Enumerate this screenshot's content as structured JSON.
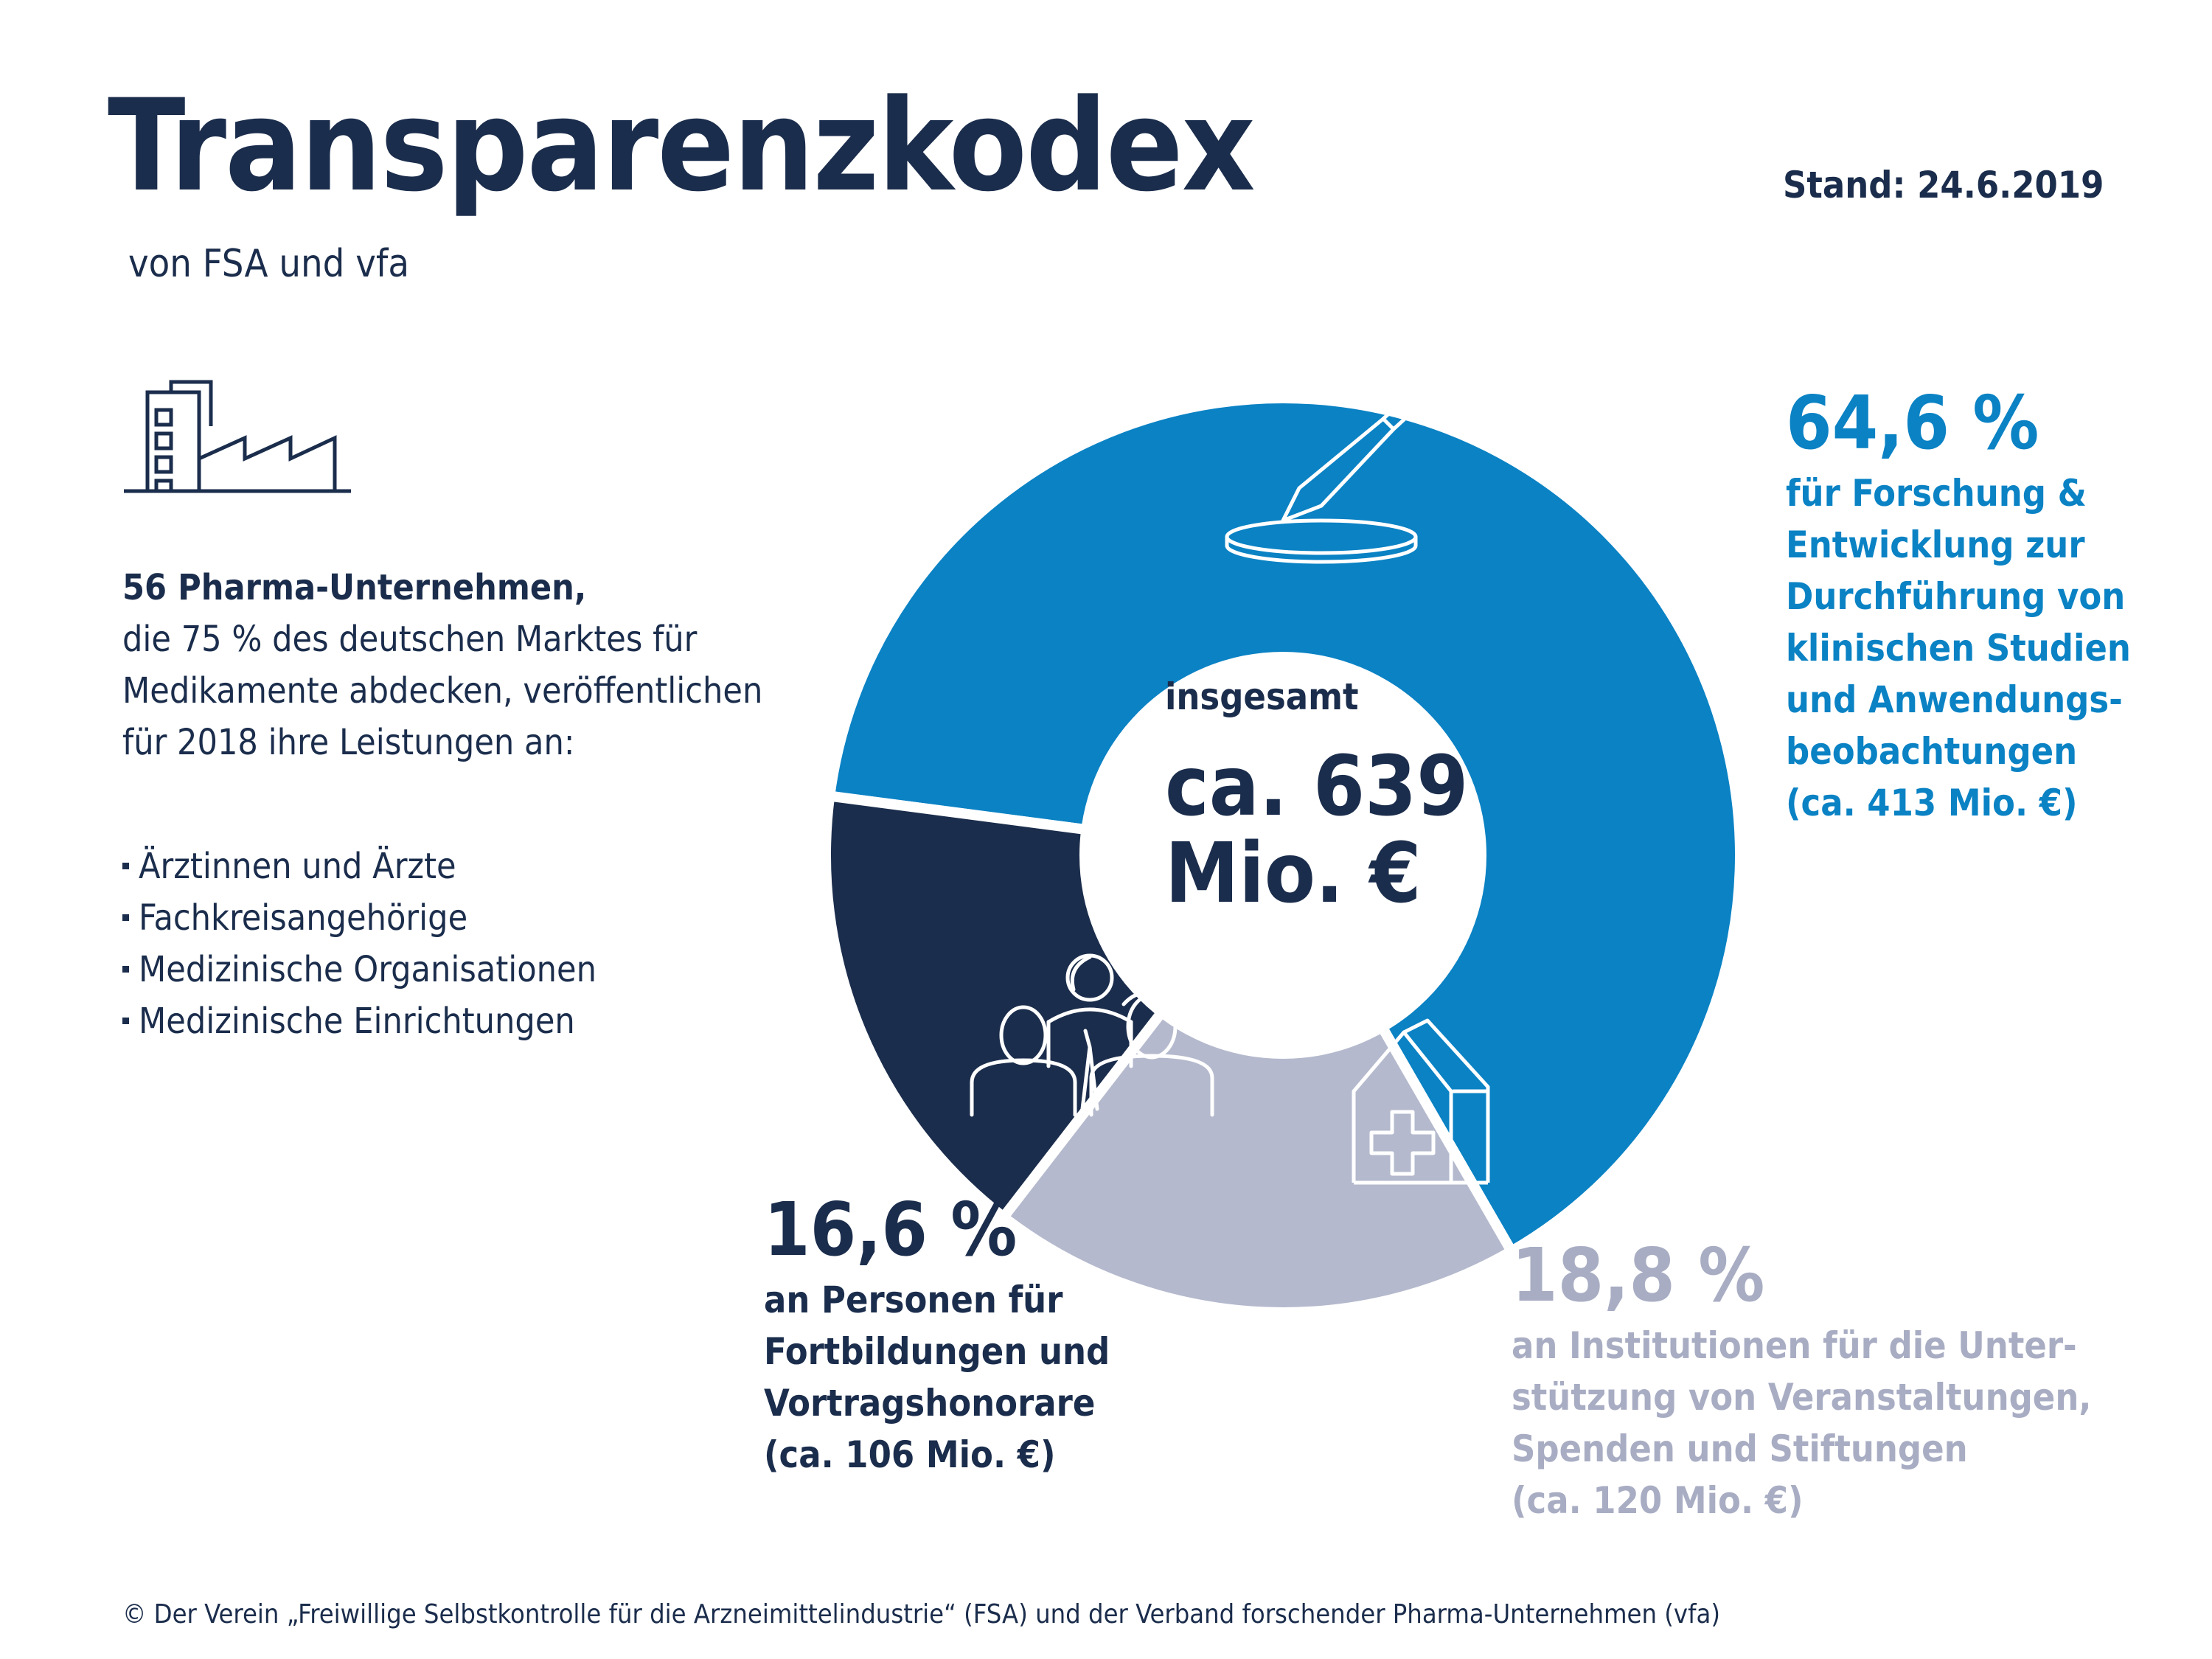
{
  "header": {
    "title": "Transparenzkodex",
    "subtitle": "von FSA und vfa",
    "date": "Stand: 24.6.2019"
  },
  "intro": {
    "lead": "56 Pharma-Unternehmen,",
    "text": "die 75 % des deutschen Marktes für Medikamente abdecken, veröffentlichen für 2018 ihre Leistungen an:",
    "bullets": [
      "Ärztinnen und Ärzte",
      "Fachkreisangehörige",
      "Medizinische Organisationen",
      "Medizinische Einrichtungen"
    ]
  },
  "center": {
    "label": "insgesamt",
    "value": "ca. 639 Mio. €"
  },
  "labels": {
    "blue": {
      "pct": "64,6 %",
      "desc": "für Forschung & Entwicklung zur Durchführung von klinischen Studien und Anwendungs-beobachtungen",
      "amount": "(ca. 413 Mio. €)"
    },
    "grey": {
      "pct": "18,8 %",
      "desc": "an Institutionen für die Unter-stützung von Veranstaltungen, Spenden und Stiftungen",
      "amount": "(ca. 120 Mio. €)"
    },
    "navy": {
      "pct": "16,6 %",
      "desc": "an Personen für Fortbildungen und Vortragshonorare",
      "amount": "(ca. 106 Mio. €)"
    }
  },
  "footer": "© Der Verein „Freiwillige Selbstkontrolle für die Arzneimittelindustrie“ (FSA) und der Verband forschender Pharma-Unternehmen (vfa)",
  "icons": {
    "header": "factory-icon",
    "research": "pipette-petri-dish-icon",
    "institutions": "hospital-building-icon",
    "persons": "people-group-icon"
  },
  "chart_data": {
    "type": "pie",
    "donut": true,
    "unit": "Mio. €",
    "total": 639,
    "slices": [
      {
        "label": "für Forschung & Entwicklung zur Durchführung von klinischen Studien und Anwendungsbeobachtungen",
        "percent": 64.6,
        "value": 413,
        "color": "#0a82c4"
      },
      {
        "label": "an Institutionen für die Unterstützung von Veranstaltungen, Spenden und Stiftungen",
        "percent": 18.8,
        "value": 120,
        "color": "#b4b9cd"
      },
      {
        "label": "an Personen für Fortbildungen und Vortragshonorare",
        "percent": 16.6,
        "value": 106,
        "color": "#1b2d4c"
      }
    ]
  }
}
